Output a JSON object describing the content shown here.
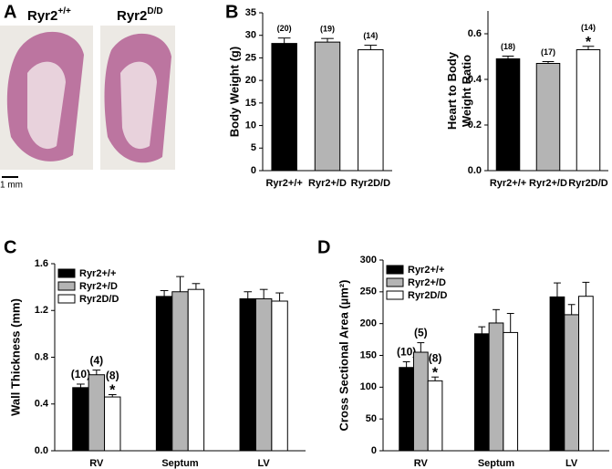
{
  "panel_labels": [
    "A",
    "B",
    "C",
    "D"
  ],
  "histology": {
    "labels": [
      {
        "text": "Ryr2",
        "sup": "+/+"
      },
      {
        "text": "Ryr2",
        "sup": "D/D"
      }
    ],
    "scale_bar": "1 mm"
  },
  "chart_data": [
    {
      "type": "bar",
      "ylabel": "Body Weight (g)",
      "categories": [
        "Ryr2+/+",
        "Ryr2+/D",
        "Ryr2D/D"
      ],
      "values": [
        28.2,
        28.5,
        26.8
      ],
      "errors": [
        1.2,
        0.8,
        1.0
      ],
      "colors": [
        "#000000",
        "#b4b4b4",
        "#ffffff"
      ],
      "n_labels": [
        "(20)",
        "(19)",
        "(14)"
      ],
      "significance": [
        null,
        null,
        null
      ],
      "ylim": [
        0,
        35
      ],
      "yticks": [
        0,
        5,
        10,
        15,
        20,
        25,
        30,
        35
      ]
    },
    {
      "type": "bar",
      "ylabel": [
        "Heart to Body",
        "Weight Ratio"
      ],
      "categories": [
        "Ryr2+/+",
        "Ryr2+/D",
        "Ryr2D/D"
      ],
      "values": [
        0.49,
        0.47,
        0.53
      ],
      "errors": [
        0.012,
        0.008,
        0.015
      ],
      "colors": [
        "#000000",
        "#b4b4b4",
        "#ffffff"
      ],
      "n_labels": [
        "(18)",
        "(17)",
        "(14)"
      ],
      "significance": [
        null,
        null,
        "*"
      ],
      "ylim": [
        0,
        0.7
      ],
      "yticks": [
        {
          "value": 0,
          "label": "0.0"
        },
        0.2,
        0.4,
        0.6
      ]
    },
    {
      "type": "grouped_bar",
      "ylabel": "Wall Thickness (mm)",
      "categories": [
        "RV",
        "Septum",
        "LV"
      ],
      "legend": "upper left",
      "series": [
        {
          "name": "Ryr2+/+",
          "color": "#000000",
          "values": [
            0.54,
            1.32,
            1.3
          ],
          "errors": [
            0.03,
            0.05,
            0.06
          ],
          "n_labels": [
            "(10)",
            null,
            null
          ],
          "significance": [
            null,
            null,
            null
          ]
        },
        {
          "name": "Ryr2+/D",
          "color": "#b4b4b4",
          "values": [
            0.65,
            1.36,
            1.3
          ],
          "errors": [
            0.04,
            0.13,
            0.08
          ],
          "n_labels": [
            "(4)",
            null,
            null
          ],
          "significance": [
            null,
            null,
            null
          ]
        },
        {
          "name": "Ryr2D/D",
          "color": "#ffffff",
          "values": [
            0.46,
            1.38,
            1.28
          ],
          "errors": [
            0.02,
            0.05,
            0.07
          ],
          "n_labels": [
            "(8)",
            null,
            null
          ],
          "significance": [
            "*",
            null,
            null
          ]
        }
      ],
      "ylim": [
        0,
        1.6
      ],
      "yticks": [
        {
          "value": 0,
          "label": "0.0"
        },
        0.4,
        0.8,
        1.2,
        1.6
      ]
    },
    {
      "type": "grouped_bar",
      "ylabel": "Cross Sectional Area (µm²)",
      "categories": [
        "RV",
        "Septum",
        "LV"
      ],
      "legend": "upper left",
      "series": [
        {
          "name": "Ryr2+/+",
          "color": "#000000",
          "values": [
            131,
            184,
            242
          ],
          "errors": [
            9,
            11,
            22
          ],
          "n_labels": [
            "(10)",
            null,
            null
          ],
          "significance": [
            null,
            null,
            null
          ]
        },
        {
          "name": "Ryr2+/D",
          "color": "#b4b4b4",
          "values": [
            155,
            201,
            214
          ],
          "errors": [
            15,
            21,
            16
          ],
          "n_labels": [
            "(5)",
            null,
            null
          ],
          "significance": [
            null,
            null,
            null
          ]
        },
        {
          "name": "Ryr2D/D",
          "color": "#ffffff",
          "values": [
            110,
            186,
            243
          ],
          "errors": [
            6,
            30,
            22
          ],
          "n_labels": [
            "(8)",
            null,
            null
          ],
          "significance": [
            "*",
            null,
            null
          ]
        }
      ],
      "ylim": [
        0,
        300
      ],
      "yticks": [
        0,
        50,
        100,
        150,
        200,
        250,
        300
      ]
    }
  ]
}
